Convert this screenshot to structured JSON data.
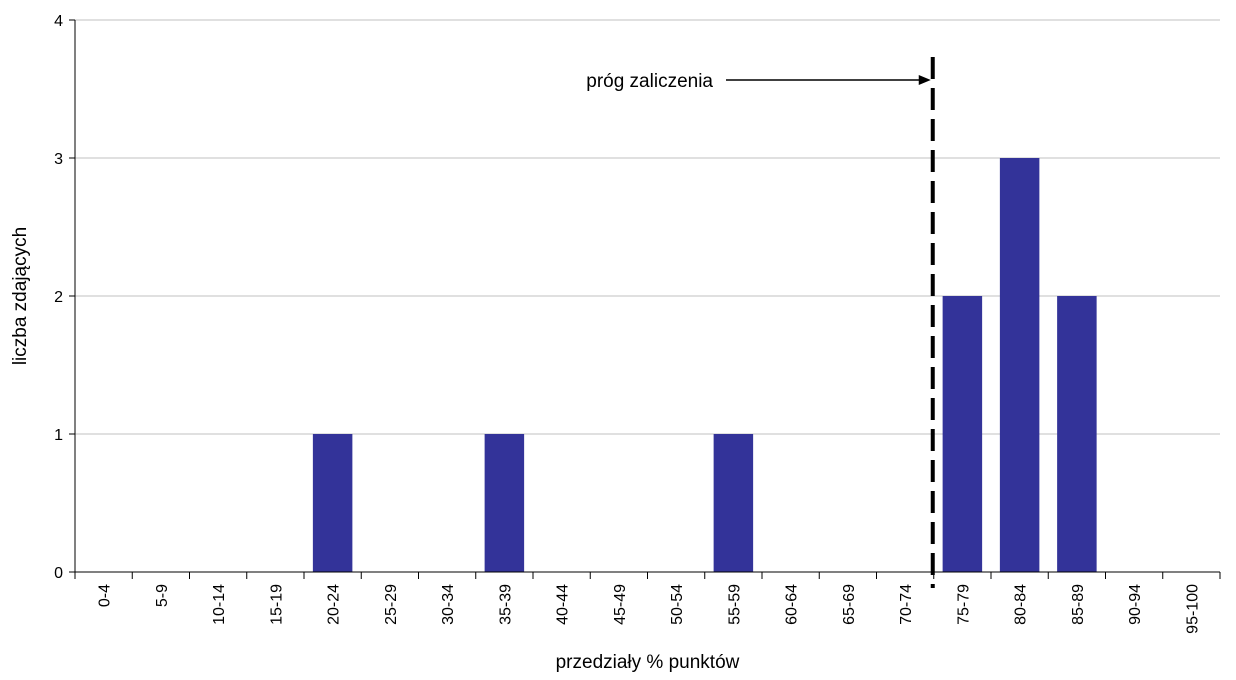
{
  "chart_data": {
    "type": "bar",
    "categories": [
      "0-4",
      "5-9",
      "10-14",
      "15-19",
      "20-24",
      "25-29",
      "30-34",
      "35-39",
      "40-44",
      "45-49",
      "50-54",
      "55-59",
      "60-64",
      "65-69",
      "70-74",
      "75-79",
      "80-84",
      "85-89",
      "90-94",
      "95-100"
    ],
    "values": [
      0,
      0,
      0,
      0,
      1,
      0,
      0,
      1,
      0,
      0,
      0,
      1,
      0,
      0,
      0,
      2,
      3,
      2,
      0,
      0
    ],
    "title": "",
    "xlabel": "przedziały % punktów",
    "ylabel": "liczba zdających",
    "ylim": [
      0,
      4
    ],
    "yticks": [
      0,
      1,
      2,
      3,
      4
    ],
    "grid": true,
    "bar_color": "#333399",
    "grid_color": "#c0c0c0",
    "threshold": {
      "label": "próg zaliczenia",
      "position": "between 70-74 and 75-79",
      "style": "dashed"
    }
  }
}
